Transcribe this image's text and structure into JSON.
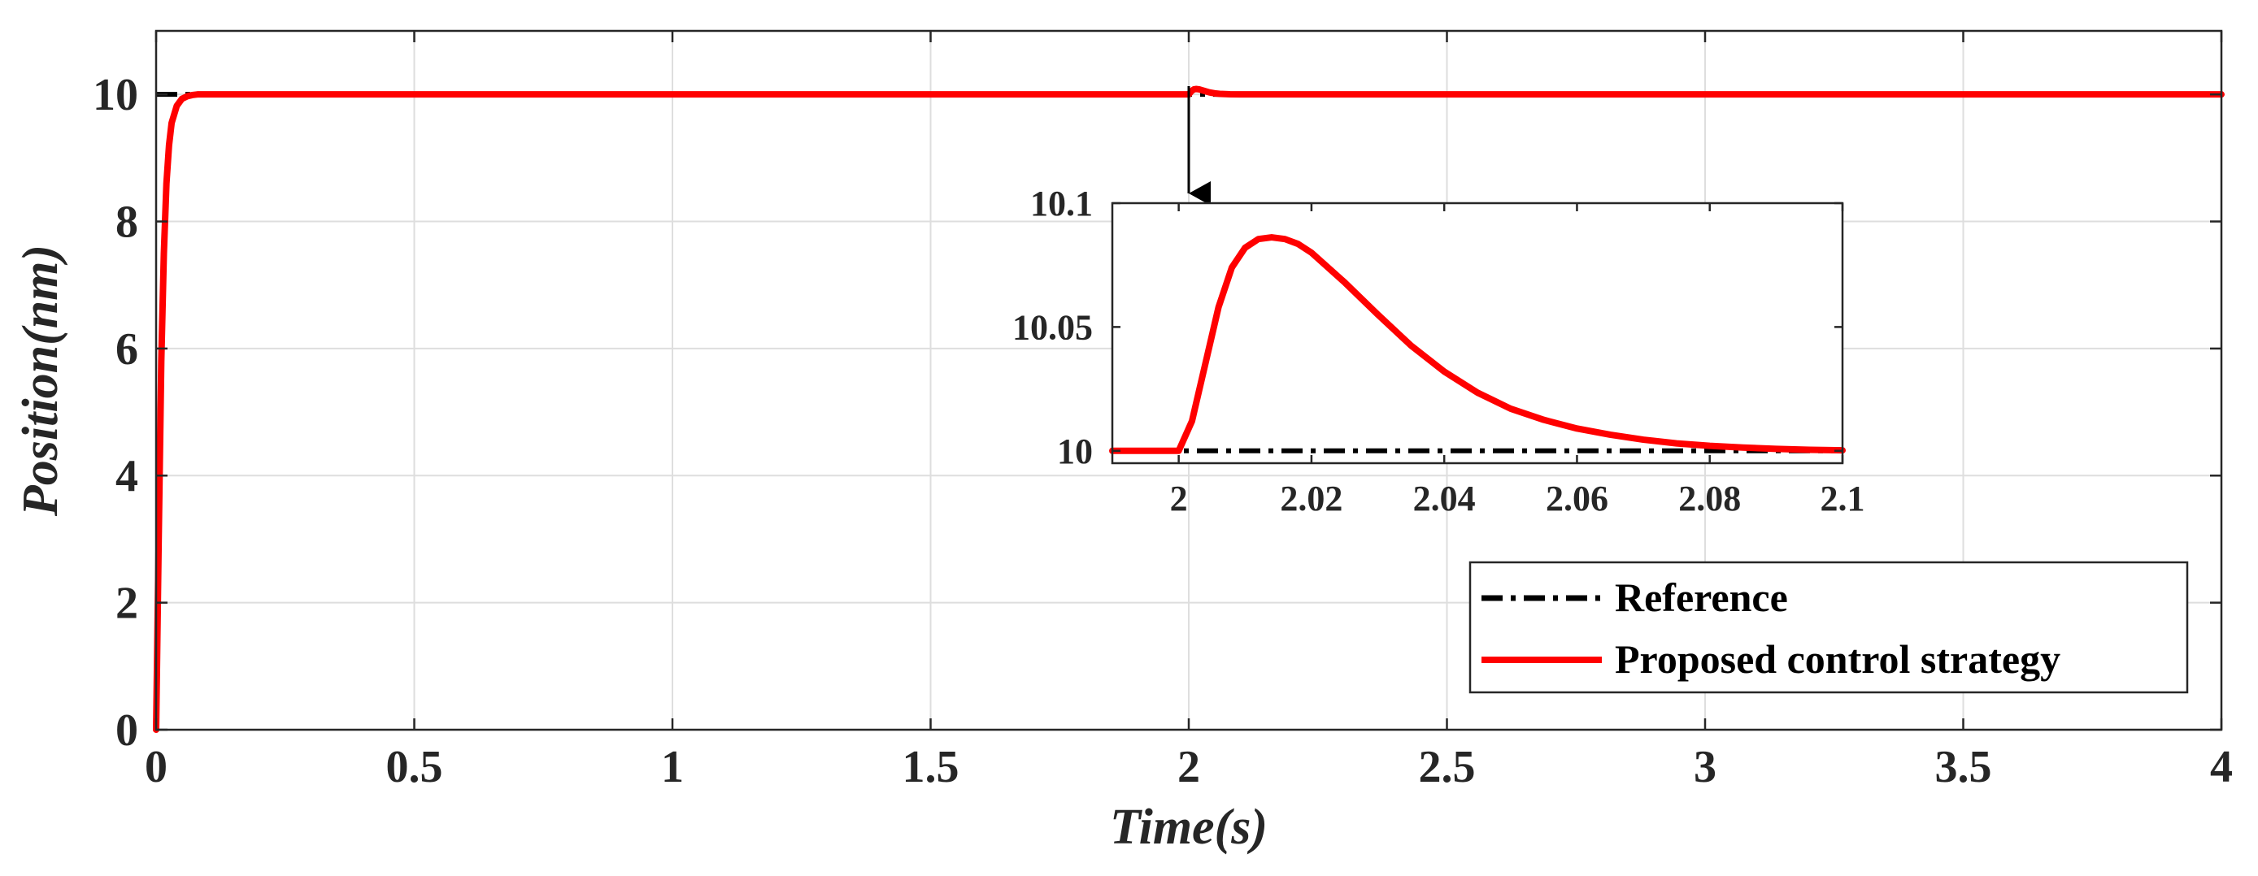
{
  "chart_data": [
    {
      "type": "line",
      "panel": "main",
      "title": "",
      "xlabel": "Time(s)",
      "ylabel": "Position(nm)",
      "xlim": [
        0,
        4
      ],
      "ylim": [
        0,
        11
      ],
      "xticks": [
        0,
        0.5,
        1,
        1.5,
        2,
        2.5,
        3,
        3.5,
        4
      ],
      "xtick_labels": [
        "0",
        "0.5",
        "1",
        "1.5",
        "2",
        "2.5",
        "3",
        "3.5",
        "4"
      ],
      "yticks": [
        0,
        2,
        4,
        6,
        8,
        10
      ],
      "ytick_labels": [
        "0",
        "2",
        "4",
        "6",
        "8",
        "10"
      ],
      "grid": true,
      "legend_position": "bottom-right",
      "series": [
        {
          "name": "Reference",
          "style": "dash-dot",
          "color": "#000000",
          "x": [
            0,
            4
          ],
          "y": [
            10,
            10
          ]
        },
        {
          "name": "Proposed control strategy",
          "style": "solid",
          "color": "#ff0000",
          "x": [
            0,
            0.005,
            0.01,
            0.015,
            0.02,
            0.025,
            0.03,
            0.04,
            0.05,
            0.06,
            0.07,
            0.08,
            0.1,
            0.12,
            2.0,
            2.005,
            2.01,
            2.014,
            2.02,
            2.03,
            2.04,
            2.05,
            2.06,
            2.08,
            2.1,
            4
          ],
          "y": [
            0,
            3.0,
            5.8,
            7.5,
            8.6,
            9.2,
            9.55,
            9.82,
            9.93,
            9.97,
            9.99,
            10.0,
            10.0,
            10.0,
            10.0,
            10.05,
            10.08,
            10.085,
            10.08,
            10.055,
            10.032,
            10.017,
            10.009,
            10.002,
            10.0,
            10.0
          ]
        }
      ]
    },
    {
      "type": "line",
      "panel": "inset",
      "title": "",
      "xlabel": "",
      "ylabel": "",
      "xlim": [
        1.99,
        2.1
      ],
      "ylim": [
        9.995,
        10.1
      ],
      "xticks": [
        2,
        2.02,
        2.04,
        2.06,
        2.08,
        2.1
      ],
      "xtick_labels": [
        "2",
        "2.02",
        "2.04",
        "2.06",
        "2.08",
        "2.1"
      ],
      "yticks": [
        10,
        10.05,
        10.1
      ],
      "ytick_labels": [
        "10",
        "10.05",
        "10.1"
      ],
      "grid": false,
      "series": [
        {
          "name": "Reference",
          "style": "dash-dot",
          "color": "#000000",
          "x": [
            1.99,
            2.1
          ],
          "y": [
            10,
            10
          ]
        },
        {
          "name": "Proposed control strategy",
          "style": "solid",
          "color": "#ff0000",
          "x": [
            1.99,
            2.0,
            2.002,
            2.004,
            2.006,
            2.008,
            2.01,
            2.012,
            2.014,
            2.016,
            2.018,
            2.02,
            2.025,
            2.03,
            2.035,
            2.04,
            2.045,
            2.05,
            2.055,
            2.06,
            2.065,
            2.07,
            2.075,
            2.08,
            2.085,
            2.09,
            2.095,
            2.1
          ],
          "y": [
            10.0,
            10.0,
            10.012,
            10.035,
            10.058,
            10.074,
            10.082,
            10.0855,
            10.0862,
            10.0855,
            10.0835,
            10.08,
            10.068,
            10.055,
            10.0425,
            10.032,
            10.0235,
            10.017,
            10.0125,
            10.009,
            10.0065,
            10.0045,
            10.003,
            10.002,
            10.0013,
            10.0008,
            10.0004,
            10.0002
          ]
        }
      ]
    }
  ],
  "legend": {
    "items": [
      {
        "label": "Reference",
        "style": "dash-dot",
        "color": "#000000"
      },
      {
        "label": "Proposed control strategy",
        "style": "solid",
        "color": "#ff0000"
      }
    ]
  }
}
